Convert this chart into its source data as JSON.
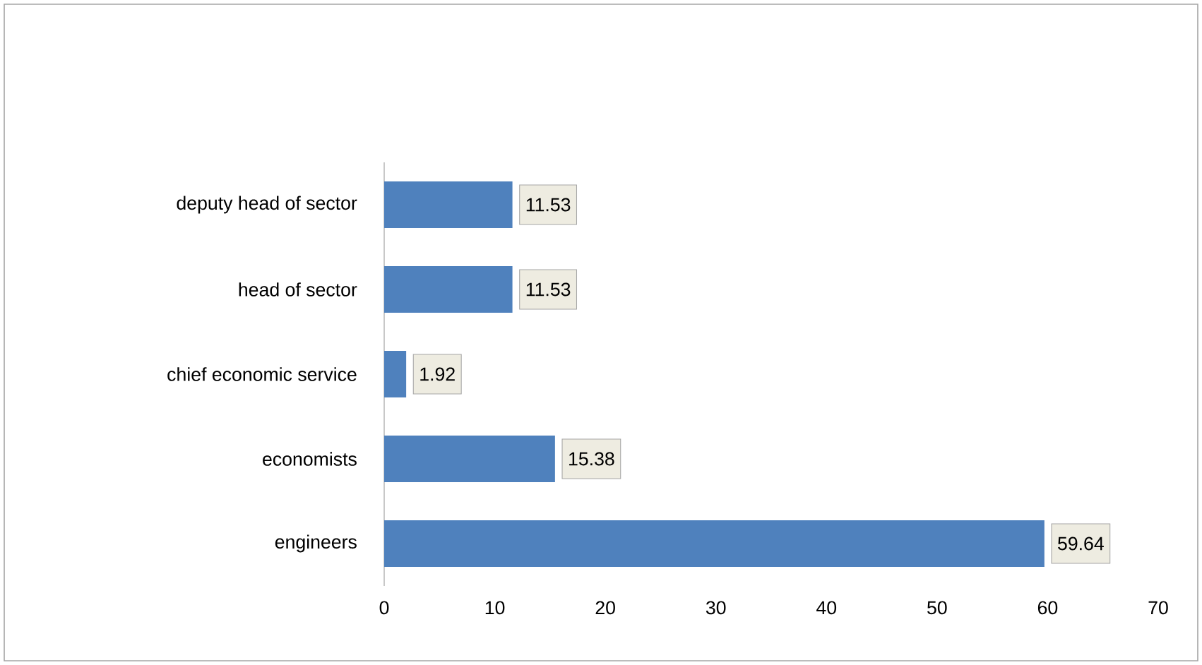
{
  "chart_data": {
    "type": "bar",
    "orientation": "horizontal",
    "categories": [
      "deputy head of sector",
      "head of sector",
      "chief economic service",
      "economists",
      "engineers"
    ],
    "values": [
      11.53,
      11.53,
      1.92,
      15.38,
      59.64
    ],
    "color": "#4f81bd",
    "xlim": [
      0,
      70
    ],
    "xticks": [
      0,
      10,
      20,
      30,
      40,
      50,
      60,
      70
    ],
    "data_labels": true,
    "grid": false
  }
}
